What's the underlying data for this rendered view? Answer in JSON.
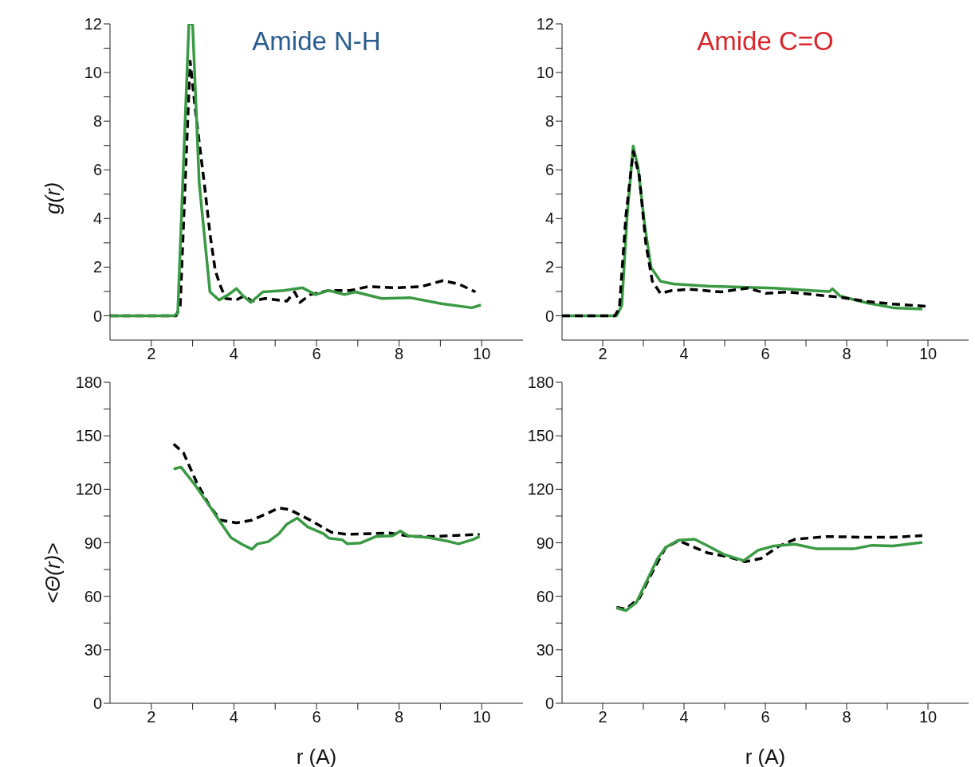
{
  "chart_data": [
    {
      "type": "line",
      "title": "Amide N-H",
      "ylabel": "g(r)",
      "xlim": [
        1,
        11
      ],
      "ylim": [
        -1,
        12
      ],
      "xticks": [
        2,
        {
          "value": 3,
          "label": null
        },
        4,
        {
          "value": 5,
          "label": null
        },
        6,
        {
          "value": 7,
          "label": null
        },
        8,
        {
          "value": 9,
          "label": null
        },
        10
      ],
      "yticks": [
        0,
        {
          "value": 1,
          "label": null
        },
        2,
        {
          "value": 3,
          "label": null
        },
        4,
        {
          "value": 5,
          "label": null
        },
        6,
        {
          "value": 7,
          "label": null
        },
        8,
        {
          "value": 9,
          "label": null
        },
        10,
        {
          "value": 11,
          "label": null
        },
        12
      ],
      "grid": false,
      "marker": "none",
      "series": [
        {
          "color": "#000000",
          "line_style": "dashed",
          "x": [
            1,
            2.6,
            2.7,
            2.94,
            3.07,
            3.29,
            3.42,
            3.55,
            3.68,
            3.8,
            4.06,
            4.25,
            4.44,
            4.76,
            5.28,
            5.47,
            5.6,
            5.85,
            6.3,
            6.81,
            7.26,
            7.9,
            8.54,
            9.05,
            9.44,
            9.85
          ],
          "values": [
            0,
            0,
            0.4,
            10.47,
            8.4,
            5.34,
            3.38,
            1.85,
            1.2,
            0.71,
            0.65,
            0.82,
            0.6,
            0.71,
            0.6,
            0.98,
            0.55,
            0.87,
            1.04,
            1.04,
            1.2,
            1.15,
            1.2,
            1.44,
            1.31,
            0.98
          ]
        },
        {
          "color": "#3a9a44",
          "line_style": "solid",
          "x": [
            1,
            2.54,
            2.64,
            2.91,
            3.0,
            3.16,
            3.42,
            3.64,
            3.87,
            4.06,
            4.22,
            4.41,
            4.7,
            5.21,
            5.66,
            5.98,
            6.3,
            6.68,
            6.94,
            7.58,
            8.28,
            9.05,
            9.76,
            9.98
          ],
          "values": [
            0,
            0,
            0.1,
            12,
            12,
            5.45,
            0.98,
            0.65,
            0.87,
            1.12,
            0.82,
            0.55,
            0.98,
            1.04,
            1.15,
            0.87,
            1.04,
            0.87,
            0.98,
            0.71,
            0.74,
            0.49,
            0.33,
            0.44
          ]
        }
      ]
    },
    {
      "type": "line",
      "title": "Amide C=O",
      "xlim": [
        1,
        11
      ],
      "ylim": [
        -1,
        12
      ],
      "xticks": [
        2,
        {
          "value": 3,
          "label": null
        },
        4,
        {
          "value": 5,
          "label": null
        },
        6,
        {
          "value": 7,
          "label": null
        },
        8,
        {
          "value": 9,
          "label": null
        },
        10
      ],
      "yticks": [
        0,
        {
          "value": 1,
          "label": null
        },
        2,
        {
          "value": 3,
          "label": null
        },
        4,
        {
          "value": 5,
          "label": null
        },
        6,
        {
          "value": 7,
          "label": null
        },
        8,
        {
          "value": 9,
          "label": null
        },
        10,
        {
          "value": 11,
          "label": null
        },
        12
      ],
      "grid": false,
      "marker": "none",
      "series": [
        {
          "color": "#3a9a44",
          "line_style": "solid",
          "x": [
            1,
            2.34,
            2.47,
            2.6,
            2.75,
            2.87,
            3.03,
            3.19,
            3.42,
            3.74,
            4.59,
            6.21,
            7.19,
            7.58,
            7.65,
            7.84,
            8.49,
            9.14,
            9.86
          ],
          "values": [
            0,
            0,
            0.42,
            4.09,
            6.98,
            6.09,
            3.76,
            1.98,
            1.42,
            1.31,
            1.22,
            1.14,
            1.03,
            1.0,
            1.11,
            0.81,
            0.53,
            0.33,
            0.28
          ]
        },
        {
          "color": "#000000",
          "line_style": "dashed",
          "x": [
            1,
            2.3,
            2.41,
            2.57,
            2.75,
            2.9,
            3.06,
            3.22,
            3.42,
            3.68,
            4.13,
            4.91,
            5.56,
            6.02,
            6.54,
            7.19,
            7.84,
            8.49,
            9.14,
            9.99
          ],
          "values": [
            0,
            0,
            0.31,
            4.09,
            6.76,
            5.76,
            2.98,
            1.42,
            0.92,
            1.03,
            1.09,
            0.98,
            1.14,
            0.92,
            0.98,
            0.87,
            0.76,
            0.59,
            0.48,
            0.39
          ]
        }
      ]
    },
    {
      "type": "line",
      "ylabel": "<Θ(r)>",
      "xlabel": "r (A)",
      "xlim": [
        1,
        11
      ],
      "ylim": [
        0,
        180
      ],
      "xticks": [
        2,
        {
          "value": 3,
          "label": null
        },
        4,
        {
          "value": 5,
          "label": null
        },
        6,
        {
          "value": 7,
          "label": null
        },
        8,
        {
          "value": 9,
          "label": null
        },
        10
      ],
      "yticks": [
        0,
        {
          "value": 15,
          "label": null
        },
        30,
        {
          "value": 45,
          "label": null
        },
        60,
        {
          "value": 75,
          "label": null
        },
        90,
        {
          "value": 105,
          "label": null
        },
        120,
        {
          "value": 135,
          "label": null
        },
        150,
        {
          "value": 165,
          "label": null
        },
        180
      ],
      "grid": false,
      "marker": "none",
      "series": [
        {
          "color": "#000000",
          "line_style": "dashed",
          "x": [
            2.54,
            2.78,
            3.1,
            3.42,
            3.68,
            4.06,
            4.44,
            5.09,
            5.34,
            5.85,
            6.36,
            6.75,
            7.77,
            8.28,
            8.86,
            9.95
          ],
          "values": [
            145.4,
            140.4,
            123.8,
            110.3,
            102.7,
            101.2,
            102.7,
            109.5,
            108.7,
            102.7,
            95.9,
            94.7,
            95.5,
            93.6,
            93.6,
            94.7
          ]
        },
        {
          "color": "#3a9a44",
          "line_style": "solid",
          "x": [
            2.54,
            2.72,
            3.04,
            3.42,
            3.68,
            3.93,
            4.19,
            4.44,
            4.57,
            4.83,
            5.09,
            5.28,
            5.53,
            5.79,
            6.17,
            6.3,
            6.62,
            6.75,
            7.07,
            7.45,
            7.84,
            8.03,
            8.22,
            8.73,
            9.18,
            9.44,
            9.82,
            9.95
          ],
          "values": [
            131.4,
            132.4,
            123,
            110.3,
            101.3,
            92.9,
            89.2,
            86.4,
            89.4,
            90.6,
            95.1,
            100.4,
            103.9,
            98.9,
            95.1,
            92.6,
            91.7,
            89.4,
            89.9,
            93.6,
            93.9,
            96.6,
            93.9,
            92.9,
            90.9,
            89.4,
            92.1,
            93.6
          ]
        }
      ]
    },
    {
      "type": "line",
      "xlabel": "r (A)",
      "xlim": [
        1,
        11
      ],
      "ylim": [
        0,
        180
      ],
      "xticks": [
        2,
        {
          "value": 3,
          "label": null
        },
        4,
        {
          "value": 5,
          "label": null
        },
        6,
        {
          "value": 7,
          "label": null
        },
        8,
        {
          "value": 9,
          "label": null
        },
        10
      ],
      "yticks": [
        0,
        {
          "value": 15,
          "label": null
        },
        30,
        {
          "value": 45,
          "label": null
        },
        60,
        {
          "value": 75,
          "label": null
        },
        90,
        {
          "value": 105,
          "label": null
        },
        120,
        {
          "value": 135,
          "label": null
        },
        150,
        {
          "value": 165,
          "label": null
        },
        180
      ],
      "grid": false,
      "marker": "none",
      "series": [
        {
          "color": "#000000",
          "line_style": "dashed",
          "x": [
            2.34,
            2.57,
            2.9,
            3.22,
            3.55,
            3.87,
            4.26,
            4.59,
            5.11,
            5.5,
            5.89,
            6.34,
            6.73,
            7.52,
            8.49,
            9.14,
            9.86
          ],
          "values": [
            53.8,
            52.8,
            58.9,
            73.5,
            87.4,
            91.2,
            87.4,
            84.3,
            82,
            79.4,
            81.2,
            88.2,
            92,
            93.5,
            93.1,
            93.1,
            94
          ]
        },
        {
          "color": "#3a9a44",
          "line_style": "solid",
          "x": [
            2.34,
            2.57,
            2.83,
            3.09,
            3.35,
            3.55,
            3.87,
            4.26,
            4.59,
            4.98,
            5.47,
            5.82,
            6.21,
            6.73,
            7.26,
            8.17,
            8.62,
            9.14,
            9.86
          ],
          "values": [
            53.5,
            52,
            56.6,
            68.9,
            81.2,
            87.4,
            91.5,
            92,
            88.2,
            83.5,
            80,
            85.8,
            88.2,
            89.2,
            86.6,
            86.6,
            88.6,
            88.2,
            90.2
          ]
        }
      ]
    }
  ]
}
